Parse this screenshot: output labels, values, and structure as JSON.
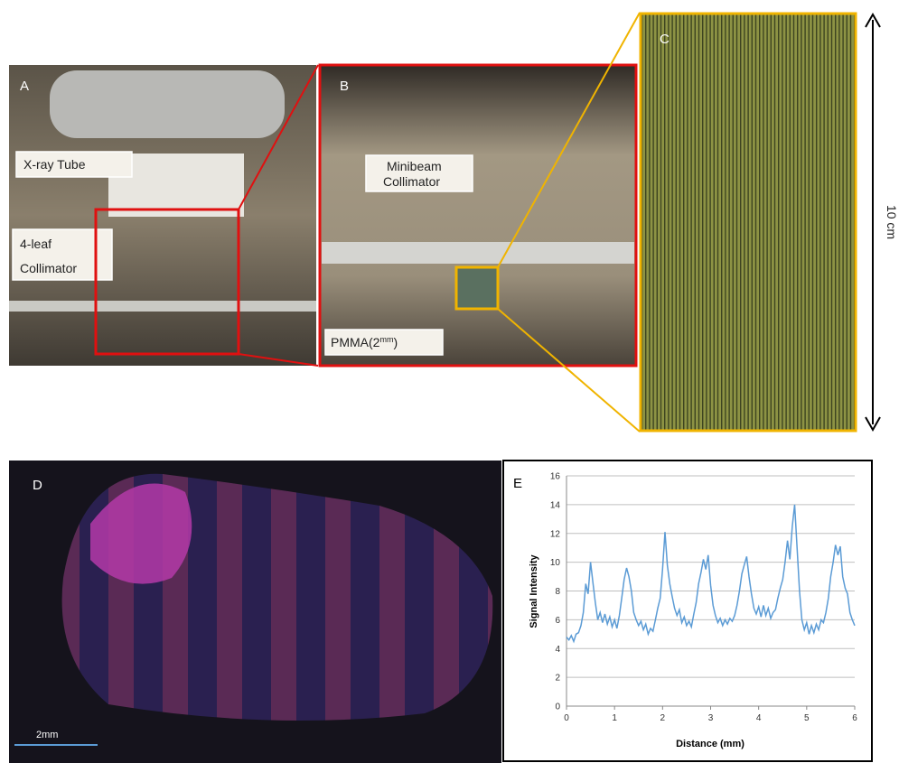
{
  "panel_labels": [
    "A",
    "B",
    "C",
    "D",
    "E"
  ],
  "annotations": {
    "xray_tube": "X-ray Tube",
    "four_leaf_collimator": [
      "4-leaf",
      "Collimator"
    ],
    "minibeam_collimator": [
      "Minibeam",
      "Collimator"
    ],
    "pmma": [
      "PMMA(2",
      "mm",
      ")"
    ],
    "scale_c": "10 cm",
    "scale_d": "2mm"
  },
  "chart_data": {
    "type": "line",
    "xlabel": "Distance (mm)",
    "ylabel": "Signal Intensity",
    "color": "#5b9bd5",
    "xlim": [
      0,
      6
    ],
    "xticks": [
      0,
      1,
      2,
      3,
      4,
      5,
      6
    ],
    "ylim": [
      0,
      16
    ],
    "yticks": [
      0,
      2,
      4,
      6,
      8,
      10,
      12,
      14,
      16
    ],
    "grid": true,
    "x": [
      0,
      0.05,
      0.1,
      0.15,
      0.2,
      0.25,
      0.3,
      0.35,
      0.4,
      0.45,
      0.5,
      0.55,
      0.6,
      0.65,
      0.7,
      0.75,
      0.8,
      0.85,
      0.9,
      0.95,
      1,
      1.05,
      1.1,
      1.15,
      1.2,
      1.25,
      1.3,
      1.35,
      1.4,
      1.45,
      1.5,
      1.55,
      1.6,
      1.65,
      1.7,
      1.75,
      1.8,
      1.85,
      1.9,
      1.95,
      2,
      2.05,
      2.1,
      2.15,
      2.2,
      2.25,
      2.3,
      2.35,
      2.4,
      2.45,
      2.5,
      2.55,
      2.6,
      2.65,
      2.7,
      2.75,
      2.8,
      2.85,
      2.9,
      2.95,
      3,
      3.05,
      3.1,
      3.15,
      3.2,
      3.25,
      3.3,
      3.35,
      3.4,
      3.45,
      3.5,
      3.55,
      3.6,
      3.65,
      3.7,
      3.75,
      3.8,
      3.85,
      3.9,
      3.95,
      4,
      4.05,
      4.1,
      4.15,
      4.2,
      4.25,
      4.3,
      4.35,
      4.4,
      4.45,
      4.5,
      4.55,
      4.6,
      4.65,
      4.7,
      4.75,
      4.8,
      4.85,
      4.9,
      4.95,
      5,
      5.05,
      5.1,
      5.15,
      5.2,
      5.25,
      5.3,
      5.35,
      5.4,
      5.45,
      5.5,
      5.55,
      5.6,
      5.65,
      5.7,
      5.75,
      5.8,
      5.85,
      5.9,
      5.95,
      6
    ],
    "values": [
      4.8,
      4.6,
      4.9,
      4.5,
      5.0,
      5.1,
      5.6,
      6.5,
      8.5,
      7.8,
      10.0,
      8.6,
      7.2,
      6.0,
      6.5,
      5.8,
      6.4,
      5.7,
      6.2,
      5.5,
      6.0,
      5.4,
      6.3,
      7.5,
      8.8,
      9.6,
      9.0,
      8.0,
      6.5,
      6.0,
      5.6,
      5.9,
      5.3,
      5.7,
      5.0,
      5.4,
      5.2,
      6.0,
      6.8,
      7.5,
      9.5,
      12.1,
      9.8,
      8.5,
      7.6,
      6.8,
      6.3,
      6.7,
      5.8,
      6.2,
      5.6,
      5.9,
      5.5,
      6.4,
      7.2,
      8.5,
      9.3,
      10.2,
      9.5,
      10.5,
      8.4,
      7.0,
      6.3,
      5.8,
      6.1,
      5.6,
      6.0,
      5.7,
      6.1,
      5.9,
      6.3,
      7.0,
      8.0,
      9.2,
      9.8,
      10.4,
      9.0,
      7.8,
      6.8,
      6.4,
      6.9,
      6.2,
      7.0,
      6.3,
      6.8,
      6.1,
      6.5,
      6.7,
      7.5,
      8.2,
      8.8,
      10.0,
      11.5,
      10.2,
      12.5,
      14.0,
      11.0,
      8.0,
      6.0,
      5.3,
      5.8,
      5.0,
      5.6,
      5.1,
      5.7,
      5.3,
      6.0,
      5.8,
      6.5,
      7.5,
      9.0,
      10.0,
      11.2,
      10.5,
      11.1,
      9.0,
      8.2,
      7.8,
      6.5,
      6.0,
      5.6
    ]
  }
}
